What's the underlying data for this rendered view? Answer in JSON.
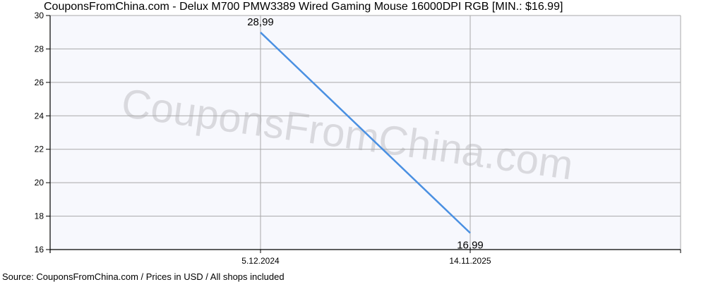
{
  "header": {
    "title": "CouponsFromChina.com - Delux M700 PMW3389 Wired Gaming Mouse 16000DPI RGB [MIN.: $16.99]"
  },
  "footer": {
    "source": "Source: CouponsFromChina.com / Prices in USD / All shops included"
  },
  "watermark": "CouponsFromChina.com",
  "colors": {
    "line": "#4a90e2",
    "plot_bg": "#f7f8fd",
    "grid": "#a9a9a9",
    "axis": "#000000",
    "watermark": "#d9d9de"
  },
  "chart_data": {
    "type": "line",
    "title": "CouponsFromChina.com - Delux M700 PMW3389 Wired Gaming Mouse 16000DPI RGB [MIN.: $16.99]",
    "xlabel": "",
    "ylabel": "",
    "categories": [
      "5.12.2024",
      "14.11.2025"
    ],
    "series": [
      {
        "name": "Price (USD)",
        "values": [
          28.99,
          16.99
        ]
      }
    ],
    "data_labels": [
      "28,99",
      "16,99"
    ],
    "ylim": [
      16,
      30
    ],
    "yticks": [
      16,
      18,
      20,
      22,
      24,
      26,
      28,
      30
    ],
    "xtick_labels": [
      "5.12.2024",
      "14.11.2025"
    ],
    "grid": true,
    "legend": "none",
    "min_price": "$16.99"
  }
}
